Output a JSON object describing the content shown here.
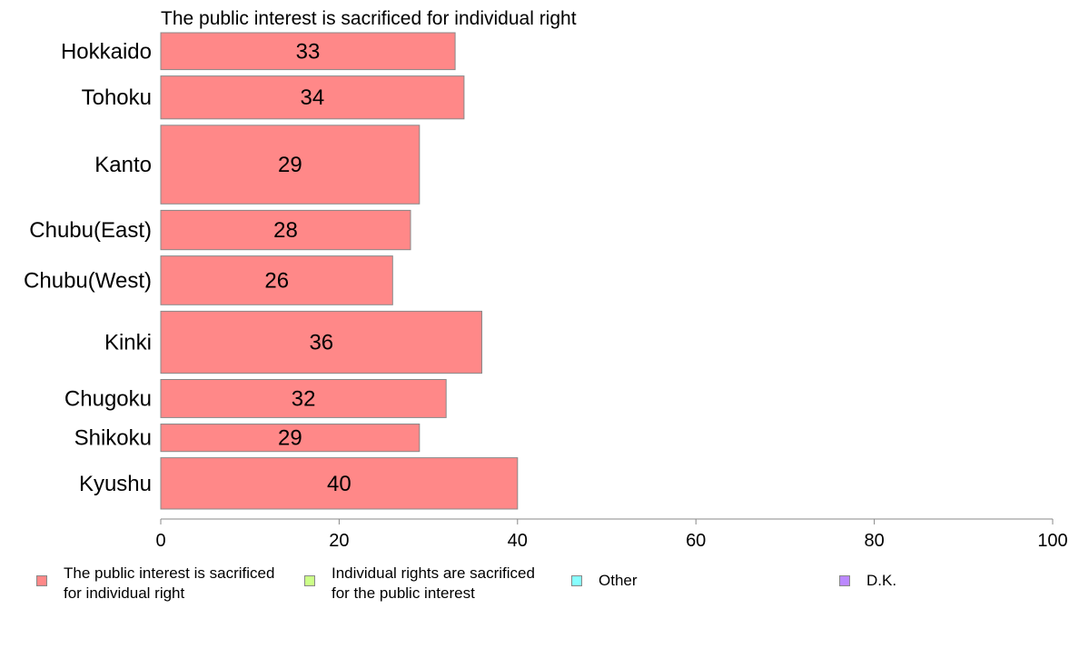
{
  "chart_data": {
    "type": "bar",
    "orientation": "horizontal",
    "title": "The public interest is sacrificed for individual right",
    "categories": [
      "Hokkaido",
      "Tohoku",
      "Kanto",
      "Chubu(East)",
      "Chubu(West)",
      "Kinki",
      "Chugoku",
      "Shikoku",
      "Kyushu"
    ],
    "series": [
      {
        "name": "The public interest is sacrificed for individual right",
        "values": [
          33,
          34,
          29,
          28,
          26,
          36,
          32,
          29,
          40
        ],
        "color": "#ff8888"
      }
    ],
    "data_labels": [
      "33",
      "34",
      "29",
      "28",
      "26",
      "36",
      "32",
      "29",
      "40"
    ],
    "bar_weights": [
      1.55,
      1.8,
      3.3,
      1.65,
      2.05,
      2.6,
      1.6,
      1.15,
      2.15
    ],
    "xlim": [
      0,
      100
    ],
    "xticks": [
      0,
      20,
      40,
      60,
      80,
      100
    ],
    "xtick_labels": [
      "0",
      "20",
      "40",
      "60",
      "80",
      "100"
    ],
    "grid": false,
    "legend_position": "bottom",
    "legend": [
      {
        "label": "The public interest is sacrificed\nfor individual right",
        "color": "#ff8888"
      },
      {
        "label": "Individual rights are sacrificed\nfor the public interest",
        "color": "#ccff88"
      },
      {
        "label": "Other",
        "color": "#88ffff"
      },
      {
        "label": "D.K.",
        "color": "#bb88ff"
      }
    ]
  }
}
